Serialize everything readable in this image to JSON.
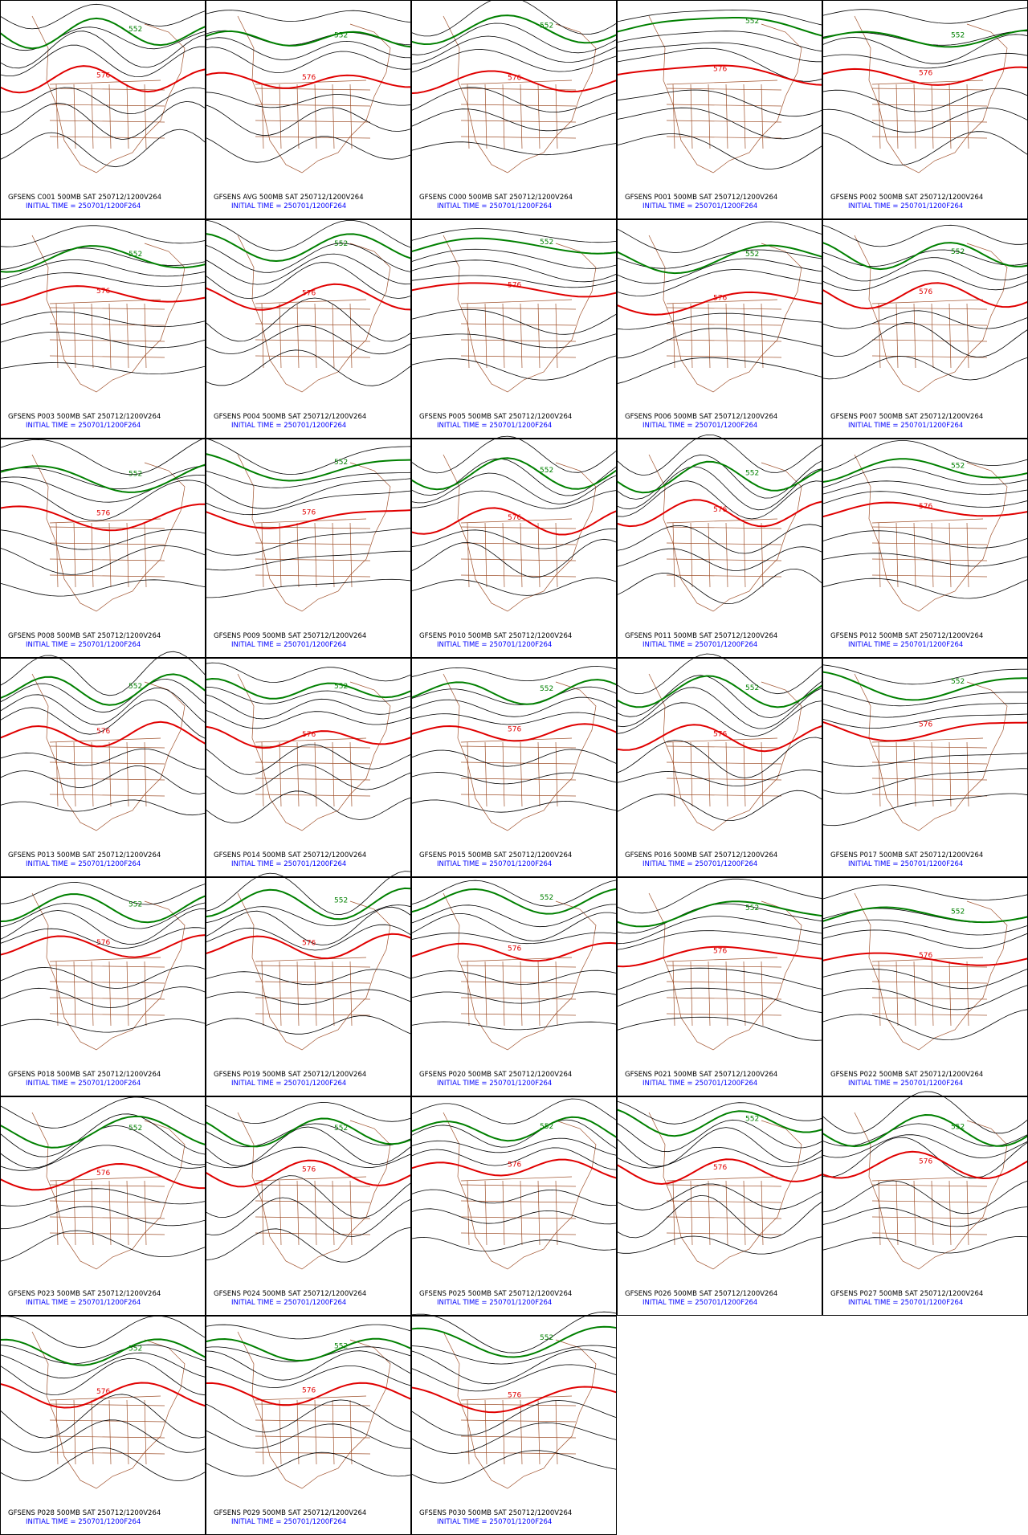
{
  "panels": [
    {
      "caption": "GFSENS C001 500MB SAT 250712/1200V264",
      "init": "INITIAL TIME = 250701/1200F264",
      "contour_labels": [
        "576",
        "552"
      ]
    },
    {
      "caption": "GFSENS AVG 500MB SAT 250712/1200V264",
      "init": "INITIAL TIME = 250701/1200F264",
      "contour_labels": [
        "576",
        "552"
      ]
    },
    {
      "caption": "GFSENS C000 500MB SAT 250712/1200V264",
      "init": "INITIAL TIME = 250701/1200F264",
      "contour_labels": [
        "576",
        "552"
      ]
    },
    {
      "caption": "GFSENS P001 500MB SAT 250712/1200V264",
      "init": "INITIAL TIME = 250701/1200F264",
      "contour_labels": [
        "576",
        "552"
      ]
    },
    {
      "caption": "GFSENS P002 500MB SAT 250712/1200V264",
      "init": "INITIAL TIME = 250701/1200F264",
      "contour_labels": [
        "576",
        "552"
      ]
    },
    {
      "caption": "GFSENS P003 500MB SAT 250712/1200V264",
      "init": "INITIAL TIME = 250701/1200F264",
      "contour_labels": [
        "576",
        "552"
      ]
    },
    {
      "caption": "GFSENS P004 500MB SAT 250712/1200V264",
      "init": "INITIAL TIME = 250701/1200F264",
      "contour_labels": [
        "576",
        "552"
      ]
    },
    {
      "caption": "GFSENS P005 500MB SAT 250712/1200V264",
      "init": "INITIAL TIME = 250701/1200F264",
      "contour_labels": [
        "576",
        "552"
      ]
    },
    {
      "caption": "GFSENS P006 500MB SAT 250712/1200V264",
      "init": "INITIAL TIME = 250701/1200F264",
      "contour_labels": [
        "576",
        "552"
      ]
    },
    {
      "caption": "GFSENS P007 500MB SAT 250712/1200V264",
      "init": "INITIAL TIME = 250701/1200F264",
      "contour_labels": [
        "576",
        "552"
      ]
    },
    {
      "caption": "GFSENS P008 500MB SAT 250712/1200V264",
      "init": "INITIAL TIME = 250701/1200F264",
      "contour_labels": [
        "576",
        "552"
      ]
    },
    {
      "caption": "GFSENS P009 500MB SAT 250712/1200V264",
      "init": "INITIAL TIME = 250701/1200F264",
      "contour_labels": [
        "576",
        "552"
      ]
    },
    {
      "caption": "GFSENS P010 500MB SAT 250712/1200V264",
      "init": "INITIAL TIME = 250701/1200F264",
      "contour_labels": [
        "576",
        "552"
      ]
    },
    {
      "caption": "GFSENS P011 500MB SAT 250712/1200V264",
      "init": "INITIAL TIME = 250701/1200F264",
      "contour_labels": [
        "576",
        "552"
      ]
    },
    {
      "caption": "GFSENS P012 500MB SAT 250712/1200V264",
      "init": "INITIAL TIME = 250701/1200F264",
      "contour_labels": [
        "576",
        "552"
      ]
    },
    {
      "caption": "GFSENS P013 500MB SAT 250712/1200V264",
      "init": "INITIAL TIME = 250701/1200F264",
      "contour_labels": [
        "576",
        "552"
      ]
    },
    {
      "caption": "GFSENS P014 500MB SAT 250712/1200V264",
      "init": "INITIAL TIME = 250701/1200F264",
      "contour_labels": [
        "576",
        "552"
      ]
    },
    {
      "caption": "GFSENS P015 500MB SAT 250712/1200V264",
      "init": "INITIAL TIME = 250701/1200F264",
      "contour_labels": [
        "576",
        "552"
      ]
    },
    {
      "caption": "GFSENS P016 500MB SAT 250712/1200V264",
      "init": "INITIAL TIME = 250701/1200F264",
      "contour_labels": [
        "576",
        "552"
      ]
    },
    {
      "caption": "GFSENS P017 500MB SAT 250712/1200V264",
      "init": "INITIAL TIME = 250701/1200F264",
      "contour_labels": [
        "576",
        "552"
      ]
    },
    {
      "caption": "GFSENS P018 500MB SAT 250712/1200V264",
      "init": "INITIAL TIME = 250701/1200F264",
      "contour_labels": [
        "576",
        "552"
      ]
    },
    {
      "caption": "GFSENS P019 500MB SAT 250712/1200V264",
      "init": "INITIAL TIME = 250701/1200F264",
      "contour_labels": [
        "576",
        "552"
      ]
    },
    {
      "caption": "GFSENS P020 500MB SAT 250712/1200V264",
      "init": "INITIAL TIME = 250701/1200F264",
      "contour_labels": [
        "576",
        "552"
      ]
    },
    {
      "caption": "GFSENS P021 500MB SAT 250712/1200V264",
      "init": "INITIAL TIME = 250701/1200F264",
      "contour_labels": [
        "576",
        "552"
      ]
    },
    {
      "caption": "GFSENS P022 500MB SAT 250712/1200V264",
      "init": "INITIAL TIME = 250701/1200F264",
      "contour_labels": [
        "576",
        "552"
      ]
    },
    {
      "caption": "GFSENS P023 500MB SAT 250712/1200V264",
      "init": "INITIAL TIME = 250701/1200F264",
      "contour_labels": [
        "576",
        "552"
      ]
    },
    {
      "caption": "GFSENS P024 500MB SAT 250712/1200V264",
      "init": "INITIAL TIME = 250701/1200F264",
      "contour_labels": [
        "576",
        "552"
      ]
    },
    {
      "caption": "GFSENS P025 500MB SAT 250712/1200V264",
      "init": "INITIAL TIME = 250701/1200F264",
      "contour_labels": [
        "576",
        "552"
      ]
    },
    {
      "caption": "GFSENS P026 500MB SAT 250712/1200V264",
      "init": "INITIAL TIME = 250701/1200F264",
      "contour_labels": [
        "576",
        "552"
      ]
    },
    {
      "caption": "GFSENS P027 500MB SAT 250712/1200V264",
      "init": "INITIAL TIME = 250701/1200F264",
      "contour_labels": [
        "576",
        "552"
      ]
    },
    {
      "caption": "GFSENS P028 500MB SAT 250712/1200V264",
      "init": "INITIAL TIME = 250701/1200F264",
      "contour_labels": [
        "576",
        "552"
      ]
    },
    {
      "caption": "GFSENS P029 500MB SAT 250712/1200V264",
      "init": "INITIAL TIME = 250701/1200F264",
      "contour_labels": [
        "576",
        "552"
      ]
    },
    {
      "caption": "GFSENS P030 500MB SAT 250712/1200V264",
      "init": "INITIAL TIME = 250701/1200F264",
      "contour_labels": [
        "576",
        "552"
      ]
    }
  ]
}
